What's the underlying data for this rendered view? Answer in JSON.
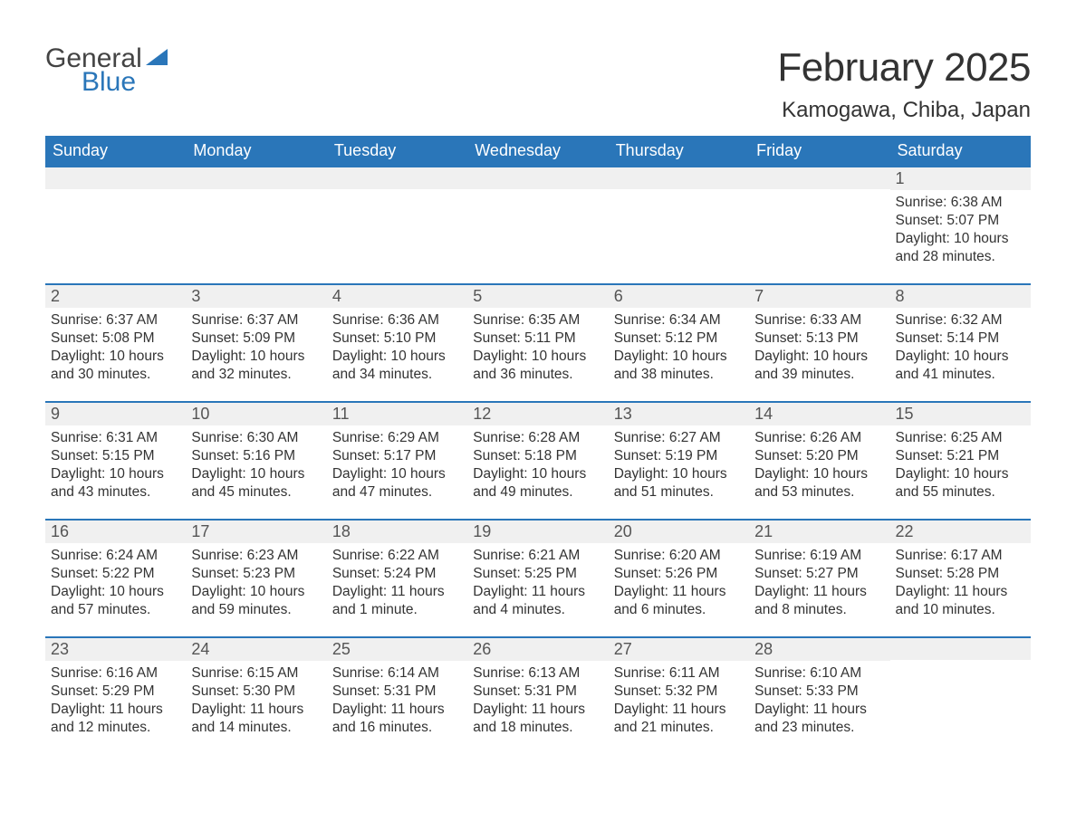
{
  "brand": {
    "word1": "General",
    "word2": "Blue"
  },
  "title": "February 2025",
  "location": "Kamogawa, Chiba, Japan",
  "colors": {
    "accent": "#2a76b9",
    "header_text": "#ffffff",
    "daynum_bg": "#f0f0f0",
    "text": "#333333",
    "background": "#ffffff"
  },
  "layout": {
    "columns": 7,
    "rows": 5,
    "weekday_fontsize": 18,
    "title_fontsize": 44,
    "location_fontsize": 24,
    "body_fontsize": 15.5
  },
  "weekdays": [
    "Sunday",
    "Monday",
    "Tuesday",
    "Wednesday",
    "Thursday",
    "Friday",
    "Saturday"
  ],
  "first_weekday_index": 6,
  "days": [
    {
      "n": 1,
      "sunrise": "6:38 AM",
      "sunset": "5:07 PM",
      "daylight": "10 hours and 28 minutes."
    },
    {
      "n": 2,
      "sunrise": "6:37 AM",
      "sunset": "5:08 PM",
      "daylight": "10 hours and 30 minutes."
    },
    {
      "n": 3,
      "sunrise": "6:37 AM",
      "sunset": "5:09 PM",
      "daylight": "10 hours and 32 minutes."
    },
    {
      "n": 4,
      "sunrise": "6:36 AM",
      "sunset": "5:10 PM",
      "daylight": "10 hours and 34 minutes."
    },
    {
      "n": 5,
      "sunrise": "6:35 AM",
      "sunset": "5:11 PM",
      "daylight": "10 hours and 36 minutes."
    },
    {
      "n": 6,
      "sunrise": "6:34 AM",
      "sunset": "5:12 PM",
      "daylight": "10 hours and 38 minutes."
    },
    {
      "n": 7,
      "sunrise": "6:33 AM",
      "sunset": "5:13 PM",
      "daylight": "10 hours and 39 minutes."
    },
    {
      "n": 8,
      "sunrise": "6:32 AM",
      "sunset": "5:14 PM",
      "daylight": "10 hours and 41 minutes."
    },
    {
      "n": 9,
      "sunrise": "6:31 AM",
      "sunset": "5:15 PM",
      "daylight": "10 hours and 43 minutes."
    },
    {
      "n": 10,
      "sunrise": "6:30 AM",
      "sunset": "5:16 PM",
      "daylight": "10 hours and 45 minutes."
    },
    {
      "n": 11,
      "sunrise": "6:29 AM",
      "sunset": "5:17 PM",
      "daylight": "10 hours and 47 minutes."
    },
    {
      "n": 12,
      "sunrise": "6:28 AM",
      "sunset": "5:18 PM",
      "daylight": "10 hours and 49 minutes."
    },
    {
      "n": 13,
      "sunrise": "6:27 AM",
      "sunset": "5:19 PM",
      "daylight": "10 hours and 51 minutes."
    },
    {
      "n": 14,
      "sunrise": "6:26 AM",
      "sunset": "5:20 PM",
      "daylight": "10 hours and 53 minutes."
    },
    {
      "n": 15,
      "sunrise": "6:25 AM",
      "sunset": "5:21 PM",
      "daylight": "10 hours and 55 minutes."
    },
    {
      "n": 16,
      "sunrise": "6:24 AM",
      "sunset": "5:22 PM",
      "daylight": "10 hours and 57 minutes."
    },
    {
      "n": 17,
      "sunrise": "6:23 AM",
      "sunset": "5:23 PM",
      "daylight": "10 hours and 59 minutes."
    },
    {
      "n": 18,
      "sunrise": "6:22 AM",
      "sunset": "5:24 PM",
      "daylight": "11 hours and 1 minute."
    },
    {
      "n": 19,
      "sunrise": "6:21 AM",
      "sunset": "5:25 PM",
      "daylight": "11 hours and 4 minutes."
    },
    {
      "n": 20,
      "sunrise": "6:20 AM",
      "sunset": "5:26 PM",
      "daylight": "11 hours and 6 minutes."
    },
    {
      "n": 21,
      "sunrise": "6:19 AM",
      "sunset": "5:27 PM",
      "daylight": "11 hours and 8 minutes."
    },
    {
      "n": 22,
      "sunrise": "6:17 AM",
      "sunset": "5:28 PM",
      "daylight": "11 hours and 10 minutes."
    },
    {
      "n": 23,
      "sunrise": "6:16 AM",
      "sunset": "5:29 PM",
      "daylight": "11 hours and 12 minutes."
    },
    {
      "n": 24,
      "sunrise": "6:15 AM",
      "sunset": "5:30 PM",
      "daylight": "11 hours and 14 minutes."
    },
    {
      "n": 25,
      "sunrise": "6:14 AM",
      "sunset": "5:31 PM",
      "daylight": "11 hours and 16 minutes."
    },
    {
      "n": 26,
      "sunrise": "6:13 AM",
      "sunset": "5:31 PM",
      "daylight": "11 hours and 18 minutes."
    },
    {
      "n": 27,
      "sunrise": "6:11 AM",
      "sunset": "5:32 PM",
      "daylight": "11 hours and 21 minutes."
    },
    {
      "n": 28,
      "sunrise": "6:10 AM",
      "sunset": "5:33 PM",
      "daylight": "11 hours and 23 minutes."
    }
  ],
  "labels": {
    "sunrise": "Sunrise: ",
    "sunset": "Sunset: ",
    "daylight": "Daylight: "
  }
}
